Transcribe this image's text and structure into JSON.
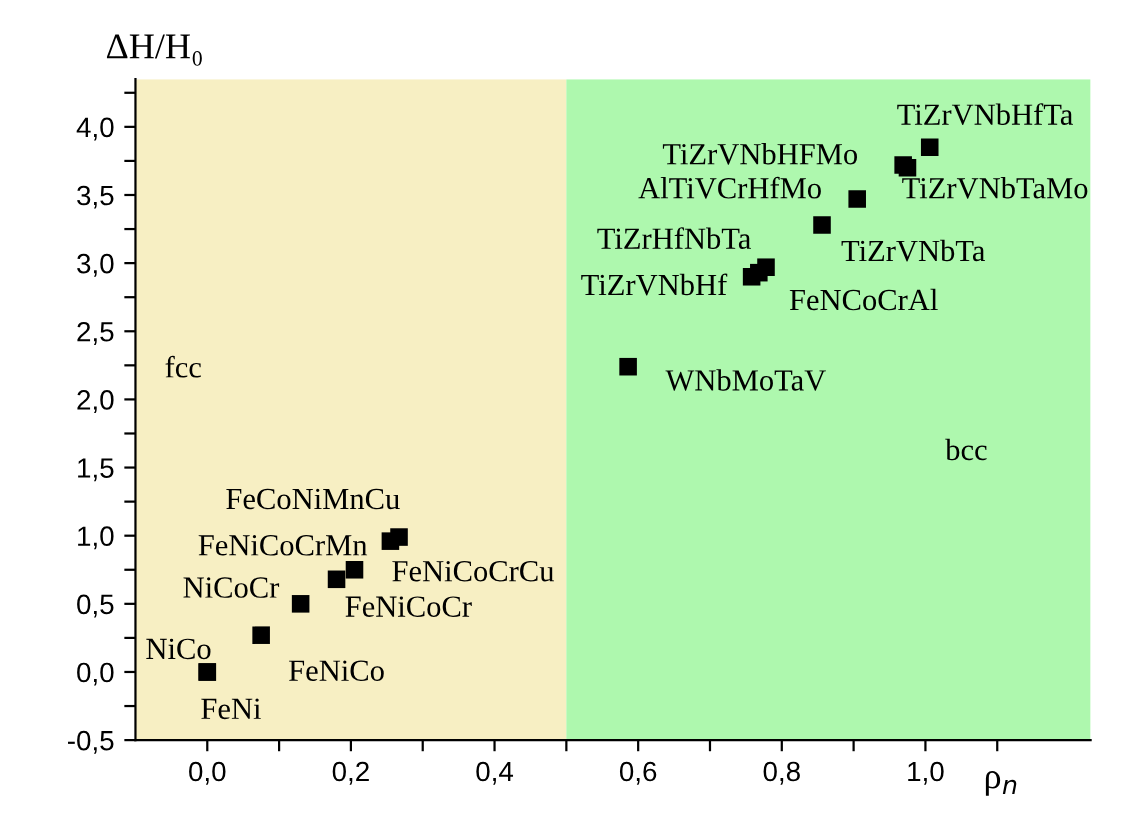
{
  "chart_data": {
    "type": "scatter",
    "xlabel": "ρ$_{n}$",
    "ylabel": "ΔH/H₀",
    "x": [
      0.0,
      0.0,
      0.075,
      0.13,
      0.18,
      0.205,
      0.255,
      0.267,
      0.586,
      0.758,
      0.768,
      0.778,
      0.856,
      0.905,
      0.969,
      0.975,
      1.006
    ],
    "values": [
      0.0,
      0.0,
      0.27,
      0.5,
      0.68,
      0.75,
      0.96,
      0.99,
      2.24,
      2.9,
      2.93,
      2.97,
      3.28,
      3.47,
      3.72,
      3.7,
      3.85
    ],
    "value_labels": [
      "FeNi",
      "NiCo",
      "FeNiCo",
      "NiCoCr",
      "FeNiCoCr",
      "FeNiCoCrCu",
      "FeNiCoCrMn",
      "FeCoNiMnCu",
      "WNbMoTaV",
      "TiZrVNbHf",
      "TiZrHfNbTa",
      "FeNCoCrAl",
      "TiZrVNbTa",
      "AlTiVCrHfMo",
      "TiZrVNbHFMo",
      "TiZrVNbTaMo",
      "TiZrVNbHfTa"
    ],
    "color": "#000000",
    "marker": "square",
    "legend": false,
    "grid": false,
    "xlim": [
      -0.1,
      1.23
    ],
    "ylim": [
      -0.5,
      4.35
    ],
    "xticks": [
      {
        "value": 0.0,
        "label": "0,0"
      },
      {
        "value": 0.1,
        "label": null
      },
      {
        "value": 0.2,
        "label": "0,2"
      },
      {
        "value": 0.3,
        "label": null
      },
      {
        "value": 0.4,
        "label": "0,4"
      },
      {
        "value": 0.5,
        "label": null
      },
      {
        "value": 0.6,
        "label": "0,6"
      },
      {
        "value": 0.7,
        "label": null
      },
      {
        "value": 0.8,
        "label": "0,8"
      },
      {
        "value": 0.9,
        "label": null
      },
      {
        "value": 1.0,
        "label": "1,0"
      },
      {
        "value": 1.1,
        "label": null
      }
    ],
    "yticks": [
      {
        "value": -0.5,
        "label": "-0,5"
      },
      {
        "value": -0.25,
        "label": null
      },
      {
        "value": 0.0,
        "label": "0,0"
      },
      {
        "value": 0.25,
        "label": null
      },
      {
        "value": 0.5,
        "label": "0,5"
      },
      {
        "value": 0.75,
        "label": null
      },
      {
        "value": 1.0,
        "label": "1,0"
      },
      {
        "value": 1.25,
        "label": null
      },
      {
        "value": 1.5,
        "label": "1,5"
      },
      {
        "value": 1.75,
        "label": null
      },
      {
        "value": 2.0,
        "label": "2,0"
      },
      {
        "value": 2.25,
        "label": null
      },
      {
        "value": 2.5,
        "label": "2,5"
      },
      {
        "value": 2.75,
        "label": null
      },
      {
        "value": 3.0,
        "label": "3,0"
      },
      {
        "value": 3.25,
        "label": null
      },
      {
        "value": 3.5,
        "label": "3,5"
      },
      {
        "value": 3.75,
        "label": null
      },
      {
        "value": 4.0,
        "label": "4,0"
      },
      {
        "value": 4.25,
        "label": null
      }
    ],
    "bands": [
      {
        "axis": "x",
        "from": -0.1,
        "to": 0.5,
        "color": "#f7efc3",
        "label": "fcc"
      },
      {
        "axis": "x",
        "from": 0.5,
        "to": 1.23,
        "color": "#aef8ae",
        "label": "bcc"
      }
    ]
  }
}
